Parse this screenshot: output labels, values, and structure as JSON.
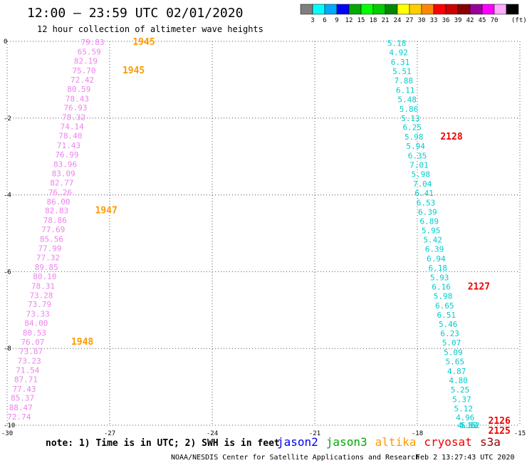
{
  "header": {
    "title": "12:00 – 23:59 UTC 02/01/2020",
    "subtitle": "12 hour collection of altimeter wave heights"
  },
  "colorbar": {
    "colors": [
      "#7f7f7f",
      "#00ffff",
      "#00aaff",
      "#0000ff",
      "#00aa00",
      "#00ff00",
      "#00cc00",
      "#008800",
      "#ffff00",
      "#ffcc00",
      "#ff8800",
      "#ff0000",
      "#cc0000",
      "#880000",
      "#990099",
      "#ff00ff",
      "#ffaaff",
      "#000000"
    ],
    "labels": [
      "3",
      "6",
      "9",
      "12",
      "15",
      "18",
      "21",
      "24",
      "27",
      "30",
      "33",
      "36",
      "39",
      "42",
      "45",
      "70"
    ],
    "unit": "(ft)"
  },
  "chart_data": {
    "type": "scatter",
    "title": "12:00 – 23:59 UTC 02/01/2020",
    "subtitle": "12 hour collection of altimeter wave heights",
    "xlim": [
      -30,
      -15
    ],
    "ylim": [
      -10,
      0
    ],
    "x_ticks": [
      "-30",
      "-27",
      "-24",
      "-21",
      "-18",
      "-15"
    ],
    "y_ticks": [
      "0",
      "-2",
      "-4",
      "-6",
      "-8",
      "-10"
    ],
    "grid": true,
    "series": [
      {
        "name": "cryosat",
        "color": "#ee82ee",
        "points": [
          {
            "x": -27.5,
            "y": -0.02,
            "label": "79.83"
          },
          {
            "x": -27.6,
            "y": -0.27,
            "label": "65.59"
          },
          {
            "x": -27.7,
            "y": -0.51,
            "label": "82.19"
          },
          {
            "x": -27.75,
            "y": -0.76,
            "label": "75.70"
          },
          {
            "x": -27.8,
            "y": -1.0,
            "label": "72.42"
          },
          {
            "x": -27.9,
            "y": -1.24,
            "label": "80.59"
          },
          {
            "x": -27.95,
            "y": -1.49,
            "label": "78.43"
          },
          {
            "x": -28.0,
            "y": -1.73,
            "label": "76.93"
          },
          {
            "x": -28.05,
            "y": -1.98,
            "label": "78.32"
          },
          {
            "x": -28.1,
            "y": -2.22,
            "label": "74.14"
          },
          {
            "x": -28.15,
            "y": -2.46,
            "label": "78.40"
          },
          {
            "x": -28.2,
            "y": -2.71,
            "label": "71.43"
          },
          {
            "x": -28.25,
            "y": -2.95,
            "label": "76.99"
          },
          {
            "x": -28.3,
            "y": -3.2,
            "label": "83.96"
          },
          {
            "x": -28.35,
            "y": -3.44,
            "label": "83.09"
          },
          {
            "x": -28.4,
            "y": -3.68,
            "label": "82.77"
          },
          {
            "x": -28.45,
            "y": -3.93,
            "label": "76.26"
          },
          {
            "x": -28.5,
            "y": -4.17,
            "label": "86.00"
          },
          {
            "x": -28.55,
            "y": -4.41,
            "label": "82.83"
          },
          {
            "x": -28.6,
            "y": -4.66,
            "label": "78.86"
          },
          {
            "x": -28.65,
            "y": -4.9,
            "label": "77.69"
          },
          {
            "x": -28.7,
            "y": -5.15,
            "label": "85.56"
          },
          {
            "x": -28.75,
            "y": -5.39,
            "label": "77.99"
          },
          {
            "x": -28.8,
            "y": -5.63,
            "label": "77.32"
          },
          {
            "x": -28.85,
            "y": -5.88,
            "label": "89.85"
          },
          {
            "x": -28.9,
            "y": -6.12,
            "label": "80.10"
          },
          {
            "x": -28.95,
            "y": -6.37,
            "label": "78.31"
          },
          {
            "x": -29.0,
            "y": -6.61,
            "label": "73.28"
          },
          {
            "x": -29.05,
            "y": -6.85,
            "label": "73.79"
          },
          {
            "x": -29.1,
            "y": -7.1,
            "label": "73.33"
          },
          {
            "x": -29.15,
            "y": -7.34,
            "label": "84.00"
          },
          {
            "x": -29.2,
            "y": -7.59,
            "label": "80.53"
          },
          {
            "x": -29.25,
            "y": -7.83,
            "label": "76.07"
          },
          {
            "x": -29.3,
            "y": -8.07,
            "label": "73.87"
          },
          {
            "x": -29.35,
            "y": -8.32,
            "label": "73.23"
          },
          {
            "x": -29.4,
            "y": -8.56,
            "label": "71.54"
          },
          {
            "x": -29.45,
            "y": -8.8,
            "label": "87.71"
          },
          {
            "x": -29.5,
            "y": -9.05,
            "label": "77.43"
          },
          {
            "x": -29.55,
            "y": -9.29,
            "label": "85.37"
          },
          {
            "x": -29.6,
            "y": -9.54,
            "label": "88.47"
          },
          {
            "x": -29.65,
            "y": -9.78,
            "label": "72.74"
          }
        ]
      },
      {
        "name": "jason3",
        "color": "#00cccc",
        "points": [
          {
            "x": -18.6,
            "y": -0.05,
            "label": "5.18"
          },
          {
            "x": -18.55,
            "y": -0.29,
            "label": "4.92"
          },
          {
            "x": -18.5,
            "y": -0.54,
            "label": "6.31"
          },
          {
            "x": -18.45,
            "y": -0.78,
            "label": "5.51"
          },
          {
            "x": -18.4,
            "y": -1.02,
            "label": "7.88"
          },
          {
            "x": -18.35,
            "y": -1.27,
            "label": "6.11"
          },
          {
            "x": -18.3,
            "y": -1.51,
            "label": "5.48"
          },
          {
            "x": -18.25,
            "y": -1.76,
            "label": "5.86"
          },
          {
            "x": -18.2,
            "y": -2.0,
            "label": "5.13"
          },
          {
            "x": -18.15,
            "y": -2.24,
            "label": "6.25"
          },
          {
            "x": -18.1,
            "y": -2.49,
            "label": "5.98"
          },
          {
            "x": -18.05,
            "y": -2.73,
            "label": "5.94"
          },
          {
            "x": -18.0,
            "y": -2.98,
            "label": "6.35"
          },
          {
            "x": -17.95,
            "y": -3.22,
            "label": "7.01"
          },
          {
            "x": -17.9,
            "y": -3.46,
            "label": "5.98"
          },
          {
            "x": -17.85,
            "y": -3.71,
            "label": "7.04"
          },
          {
            "x": -17.8,
            "y": -3.95,
            "label": "6.41"
          },
          {
            "x": -17.75,
            "y": -4.2,
            "label": "6.53"
          },
          {
            "x": -17.7,
            "y": -4.44,
            "label": "6.39"
          },
          {
            "x": -17.65,
            "y": -4.68,
            "label": "6.89"
          },
          {
            "x": -17.6,
            "y": -4.93,
            "label": "5.95"
          },
          {
            "x": -17.55,
            "y": -5.17,
            "label": "5.42"
          },
          {
            "x": -17.5,
            "y": -5.41,
            "label": "6.39"
          },
          {
            "x": -17.45,
            "y": -5.66,
            "label": "6.94"
          },
          {
            "x": -17.4,
            "y": -5.9,
            "label": "6.18"
          },
          {
            "x": -17.35,
            "y": -6.15,
            "label": "5.93"
          },
          {
            "x": -17.3,
            "y": -6.39,
            "label": "6.16"
          },
          {
            "x": -17.25,
            "y": -6.63,
            "label": "5.98"
          },
          {
            "x": -17.2,
            "y": -6.88,
            "label": "6.65"
          },
          {
            "x": -17.15,
            "y": -7.12,
            "label": "6.51"
          },
          {
            "x": -17.1,
            "y": -7.37,
            "label": "5.46"
          },
          {
            "x": -17.05,
            "y": -7.61,
            "label": "6.23"
          },
          {
            "x": -17.0,
            "y": -7.85,
            "label": "5.07"
          },
          {
            "x": -16.95,
            "y": -8.1,
            "label": "5.09"
          },
          {
            "x": -16.9,
            "y": -8.34,
            "label": "5.65"
          },
          {
            "x": -16.85,
            "y": -8.59,
            "label": "4.87"
          },
          {
            "x": -16.8,
            "y": -8.83,
            "label": "4.80"
          },
          {
            "x": -16.75,
            "y": -9.07,
            "label": "5.25"
          },
          {
            "x": -16.7,
            "y": -9.32,
            "label": "5.37"
          },
          {
            "x": -16.65,
            "y": -9.56,
            "label": "5.12"
          },
          {
            "x": -16.6,
            "y": -9.8,
            "label": "4.96"
          },
          {
            "x": -16.55,
            "y": -10.0,
            "label": "4.15"
          },
          {
            "x": -16.5,
            "y": -10.0,
            "label": "4.53"
          },
          {
            "x": -16.45,
            "y": -10.0,
            "label": "5.62"
          }
        ]
      }
    ],
    "annotations": [
      {
        "x": -26.0,
        "y": -0.02,
        "text": "1945",
        "color": "#ff9900"
      },
      {
        "x": -26.3,
        "y": -0.76,
        "text": "1945",
        "color": "#ff9900"
      },
      {
        "x": -27.1,
        "y": -4.41,
        "text": "1947",
        "color": "#ff9900"
      },
      {
        "x": -27.8,
        "y": -7.83,
        "text": "1948",
        "color": "#ff9900"
      },
      {
        "x": -17.0,
        "y": -2.49,
        "text": "2128",
        "color": "#ee0000"
      },
      {
        "x": -16.2,
        "y": -6.39,
        "text": "2127",
        "color": "#ee0000"
      },
      {
        "x": -15.6,
        "y": -10.0,
        "text": "2126",
        "color": "#ee0000"
      },
      {
        "x": -15.6,
        "y": -10.0,
        "text": "2125",
        "color": "#ee0000"
      }
    ]
  },
  "footer": {
    "note": "note: 1) Time is in UTC; 2) SWH is in feet",
    "legend": [
      {
        "label": "jason2",
        "color": "#0000ee"
      },
      {
        "label": "jason3",
        "color": "#00aa00"
      },
      {
        "label": "altika",
        "color": "#ff9900"
      },
      {
        "label": "cryosat",
        "color": "#ee0000"
      },
      {
        "label": "s3a",
        "color": "#8b0000"
      }
    ],
    "credit": "NOAA/NESDIS Center for Satellite Applications and Research",
    "timestamp": "Feb  2 13:27:43 UTC 2020"
  }
}
